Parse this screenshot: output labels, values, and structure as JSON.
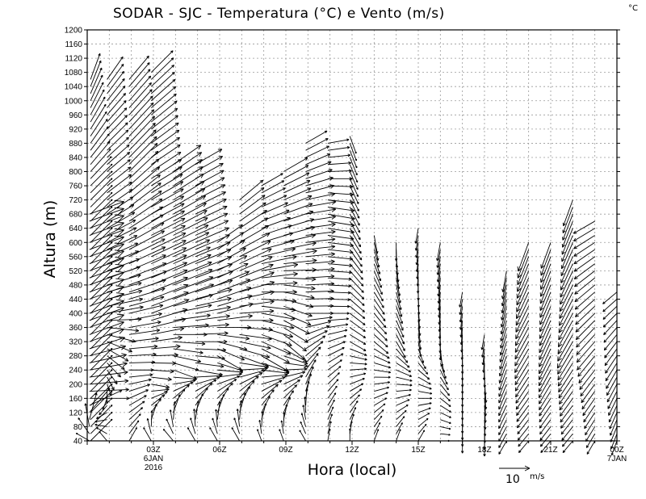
{
  "chart_data": {
    "type": "vector-field",
    "title": "SODAR - SJC - Temperatura (°C) e Vento (m/s)",
    "corner_unit": "°C",
    "xlabel": "Hora (local)",
    "ylabel": "Altura (m)",
    "ylim": [
      40,
      1200
    ],
    "xlim_hours": [
      0,
      24
    ],
    "y_ticks": [
      40,
      80,
      120,
      160,
      200,
      240,
      280,
      320,
      360,
      400,
      440,
      480,
      520,
      560,
      600,
      640,
      680,
      720,
      760,
      800,
      840,
      880,
      920,
      960,
      1000,
      1040,
      1080,
      1120,
      1160,
      1200
    ],
    "x_ticks": [
      {
        "hour": 3,
        "label": "03Z",
        "sub1": "6JAN",
        "sub2": "2016"
      },
      {
        "hour": 6,
        "label": "06Z",
        "sub1": "",
        "sub2": ""
      },
      {
        "hour": 9,
        "label": "09Z",
        "sub1": "",
        "sub2": ""
      },
      {
        "hour": 12,
        "label": "12Z",
        "sub1": "",
        "sub2": ""
      },
      {
        "hour": 15,
        "label": "15Z",
        "sub1": "",
        "sub2": ""
      },
      {
        "hour": 18,
        "label": "18Z",
        "sub1": "",
        "sub2": ""
      },
      {
        "hour": 21,
        "label": "21Z",
        "sub1": "",
        "sub2": ""
      },
      {
        "hour": 24,
        "label": "00Z",
        "sub1": "7JAN",
        "sub2": ""
      }
    ],
    "reference_vector": {
      "speed": 10,
      "label": "10",
      "unit": "m/s"
    },
    "profiles": [
      {
        "hour": 0.1,
        "top": 680,
        "sets": [
          [
            40,
            300,
            5,
            2
          ],
          [
            160,
            90,
            13,
            4
          ],
          [
            320,
            70,
            12,
            8
          ],
          [
            560,
            70,
            12,
            12
          ]
        ]
      },
      {
        "hour": 0.15,
        "top": 1060,
        "sets": [
          [
            760,
            45,
            10,
            2
          ],
          [
            1060,
            20,
            9,
            3
          ]
        ]
      },
      {
        "hour": 0.9,
        "top": 1060,
        "sets": [
          [
            40,
            320,
            4,
            2
          ],
          [
            200,
            160,
            4,
            4
          ],
          [
            400,
            80,
            12,
            5
          ],
          [
            700,
            55,
            10,
            4
          ],
          [
            1060,
            35,
            9,
            3
          ]
        ]
      },
      {
        "hour": 1.9,
        "top": 1060,
        "sets": [
          [
            40,
            30,
            5,
            2
          ],
          [
            240,
            90,
            8,
            4
          ],
          [
            480,
            70,
            13,
            5
          ],
          [
            800,
            45,
            13,
            4
          ],
          [
            1060,
            40,
            10,
            3
          ]
        ]
      },
      {
        "hour": 2.9,
        "top": 1080,
        "sets": [
          [
            40,
            330,
            5,
            2
          ],
          [
            200,
            100,
            6,
            5
          ],
          [
            400,
            70,
            13,
            6
          ],
          [
            720,
            60,
            12,
            5
          ],
          [
            1080,
            45,
            10,
            3
          ]
        ]
      },
      {
        "hour": 3.9,
        "top": 820,
        "sets": [
          [
            40,
            320,
            5,
            2
          ],
          [
            240,
            110,
            8,
            4
          ],
          [
            440,
            70,
            14,
            5
          ],
          [
            820,
            55,
            11,
            6
          ]
        ]
      },
      {
        "hour": 4.9,
        "top": 820,
        "sets": [
          [
            40,
            330,
            5,
            2
          ],
          [
            240,
            100,
            9,
            4
          ],
          [
            480,
            70,
            13,
            6
          ],
          [
            820,
            60,
            10,
            5
          ]
        ]
      },
      {
        "hour": 5.9,
        "top": 600,
        "sets": [
          [
            40,
            330,
            5,
            2
          ],
          [
            280,
            120,
            9,
            4
          ],
          [
            400,
            75,
            12,
            6
          ],
          [
            600,
            55,
            10,
            5
          ]
        ]
      },
      {
        "hour": 6.9,
        "top": 720,
        "sets": [
          [
            40,
            330,
            5,
            2
          ],
          [
            280,
            110,
            10,
            5
          ],
          [
            480,
            70,
            12,
            6
          ],
          [
            720,
            50,
            10,
            4
          ]
        ]
      },
      {
        "hour": 7.9,
        "top": 760,
        "sets": [
          [
            40,
            340,
            4,
            2
          ],
          [
            280,
            120,
            10,
            5
          ],
          [
            520,
            80,
            12,
            6
          ],
          [
            760,
            60,
            8,
            3
          ]
        ]
      },
      {
        "hour": 8.9,
        "top": 800,
        "sets": [
          [
            40,
            340,
            4,
            2
          ],
          [
            320,
            130,
            9,
            5
          ],
          [
            560,
            80,
            11,
            6
          ],
          [
            800,
            60,
            9,
            4
          ]
        ]
      },
      {
        "hour": 9.9,
        "top": 880,
        "sets": [
          [
            40,
            330,
            4,
            2
          ],
          [
            400,
            90,
            9,
            4
          ],
          [
            700,
            80,
            10,
            6
          ],
          [
            880,
            60,
            8,
            3
          ]
        ]
      },
      {
        "hour": 10.9,
        "top": 880,
        "sets": [
          [
            40,
            10,
            4,
            2
          ],
          [
            400,
            90,
            7,
            3
          ],
          [
            680,
            100,
            9,
            5
          ],
          [
            880,
            80,
            7,
            3
          ]
        ]
      },
      {
        "hour": 11.9,
        "top": 900,
        "sets": [
          [
            40,
            0,
            4,
            2
          ],
          [
            320,
            120,
            6,
            3
          ],
          [
            640,
            150,
            7,
            3
          ],
          [
            900,
            160,
            6,
            2
          ]
        ]
      },
      {
        "hour": 13.0,
        "top": 620,
        "sets": [
          [
            40,
            20,
            4,
            2
          ],
          [
            320,
            130,
            6,
            3
          ],
          [
            620,
            170,
            6,
            3
          ]
        ]
      },
      {
        "hour": 14.0,
        "top": 600,
        "sets": [
          [
            40,
            20,
            4,
            2
          ],
          [
            320,
            150,
            6,
            3
          ],
          [
            600,
            180,
            6,
            3
          ]
        ]
      },
      {
        "hour": 15.0,
        "top": 640,
        "sets": [
          [
            40,
            30,
            4,
            2
          ],
          [
            320,
            170,
            5,
            3
          ],
          [
            640,
            190,
            5,
            3
          ]
        ]
      },
      {
        "hour": 16.0,
        "top": 600,
        "sets": [
          [
            40,
            90,
            3,
            2
          ],
          [
            320,
            180,
            6,
            3
          ],
          [
            600,
            190,
            6,
            3
          ]
        ]
      },
      {
        "hour": 17.0,
        "top": 460,
        "sets": [
          [
            40,
            180,
            4,
            3
          ],
          [
            300,
            180,
            6,
            3
          ],
          [
            460,
            190,
            5,
            3
          ]
        ]
      },
      {
        "hour": 18.0,
        "top": 340,
        "sets": [
          [
            40,
            180,
            5,
            3
          ],
          [
            200,
            175,
            6,
            3
          ],
          [
            340,
            190,
            5,
            3
          ]
        ]
      },
      {
        "hour": 19.0,
        "top": 520,
        "sets": [
          [
            40,
            210,
            5,
            3
          ],
          [
            240,
            200,
            7,
            4
          ],
          [
            520,
            190,
            7,
            4
          ]
        ]
      },
      {
        "hour": 20.0,
        "top": 600,
        "sets": [
          [
            40,
            220,
            5,
            3
          ],
          [
            300,
            210,
            9,
            5
          ],
          [
            600,
            200,
            10,
            6
          ]
        ]
      },
      {
        "hour": 21.0,
        "top": 600,
        "sets": [
          [
            40,
            220,
            5,
            3
          ],
          [
            300,
            205,
            9,
            5
          ],
          [
            600,
            200,
            9,
            5
          ]
        ]
      },
      {
        "hour": 22.0,
        "top": 720,
        "sets": [
          [
            40,
            220,
            5,
            3
          ],
          [
            320,
            210,
            10,
            6
          ],
          [
            720,
            200,
            9,
            4
          ]
        ]
      },
      {
        "hour": 23.0,
        "top": 660,
        "sets": [
          [
            40,
            210,
            5,
            3
          ],
          [
            300,
            220,
            9,
            5
          ],
          [
            660,
            240,
            8,
            4
          ]
        ]
      },
      {
        "hour": 24.0,
        "top": 460,
        "sets": [
          [
            40,
            200,
            5,
            3
          ],
          [
            240,
            210,
            7,
            4
          ],
          [
            460,
            230,
            6,
            3
          ]
        ]
      }
    ]
  }
}
